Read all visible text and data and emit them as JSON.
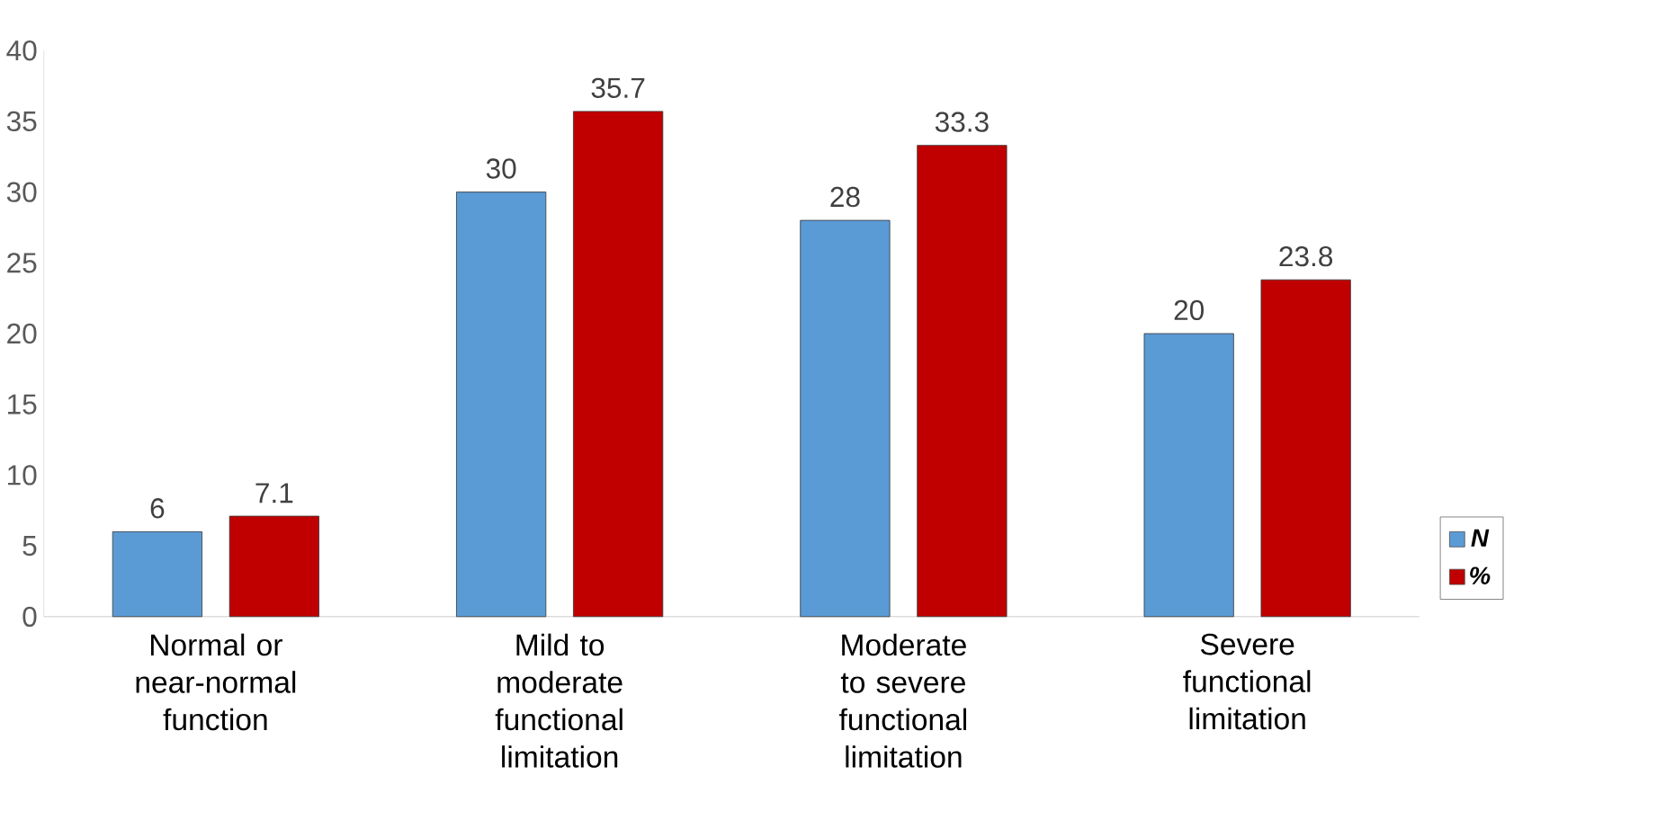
{
  "chart_data": {
    "type": "bar",
    "categories": [
      "Normal or near-normal function",
      "Mild to moderate functional limitation",
      "Moderate to severe functional limitation",
      "Severe functional limitation"
    ],
    "series": [
      {
        "name": "N",
        "color": "#5b9bd5",
        "values": [
          6,
          30,
          28,
          20
        ]
      },
      {
        "name": "%",
        "color": "#c00000",
        "values": [
          7.1,
          35.7,
          33.3,
          23.8
        ]
      }
    ],
    "ylim": [
      0,
      40
    ],
    "yticks": [
      0,
      5,
      10,
      15,
      20,
      25,
      30,
      35,
      40
    ],
    "data_labels": true,
    "legend": "right",
    "grid": false
  }
}
